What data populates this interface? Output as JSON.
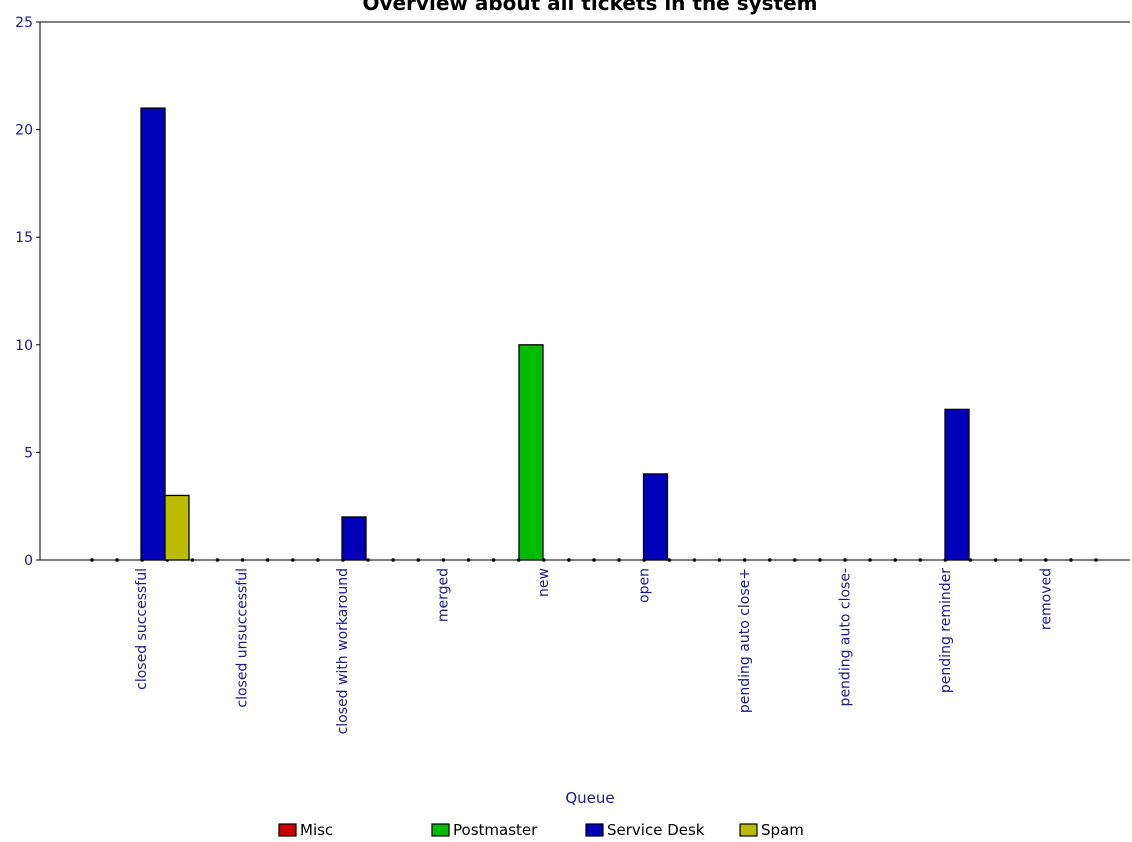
{
  "chart_data": {
    "type": "bar",
    "title": "Overview about all tickets in the system",
    "xlabel": "Queue",
    "ylabel": "",
    "ylim": [
      0,
      25
    ],
    "yticks": [
      0,
      5,
      10,
      15,
      20,
      25
    ],
    "grid": false,
    "legend_position": "bottom",
    "categories": [
      "closed successful",
      "closed unsuccessful",
      "closed with workaround",
      "merged",
      "new",
      "open",
      "pending auto close+",
      "pending auto close-",
      "pending reminder",
      "removed"
    ],
    "series": [
      {
        "name": "Misc",
        "color": "#cc0000",
        "values": [
          0,
          0,
          0,
          0,
          0,
          0,
          0,
          0,
          0,
          0
        ]
      },
      {
        "name": "Postmaster",
        "color": "#00bb00",
        "values": [
          0,
          0,
          0,
          0,
          10,
          0,
          0,
          0,
          0,
          0
        ]
      },
      {
        "name": "Service Desk",
        "color": "#0000bb",
        "values": [
          21,
          0,
          2,
          0,
          0,
          4,
          0,
          0,
          7,
          0
        ]
      },
      {
        "name": "Spam",
        "color": "#bbbb00",
        "values": [
          3,
          0,
          0,
          0,
          0,
          0,
          0,
          0,
          0,
          0
        ]
      }
    ]
  }
}
